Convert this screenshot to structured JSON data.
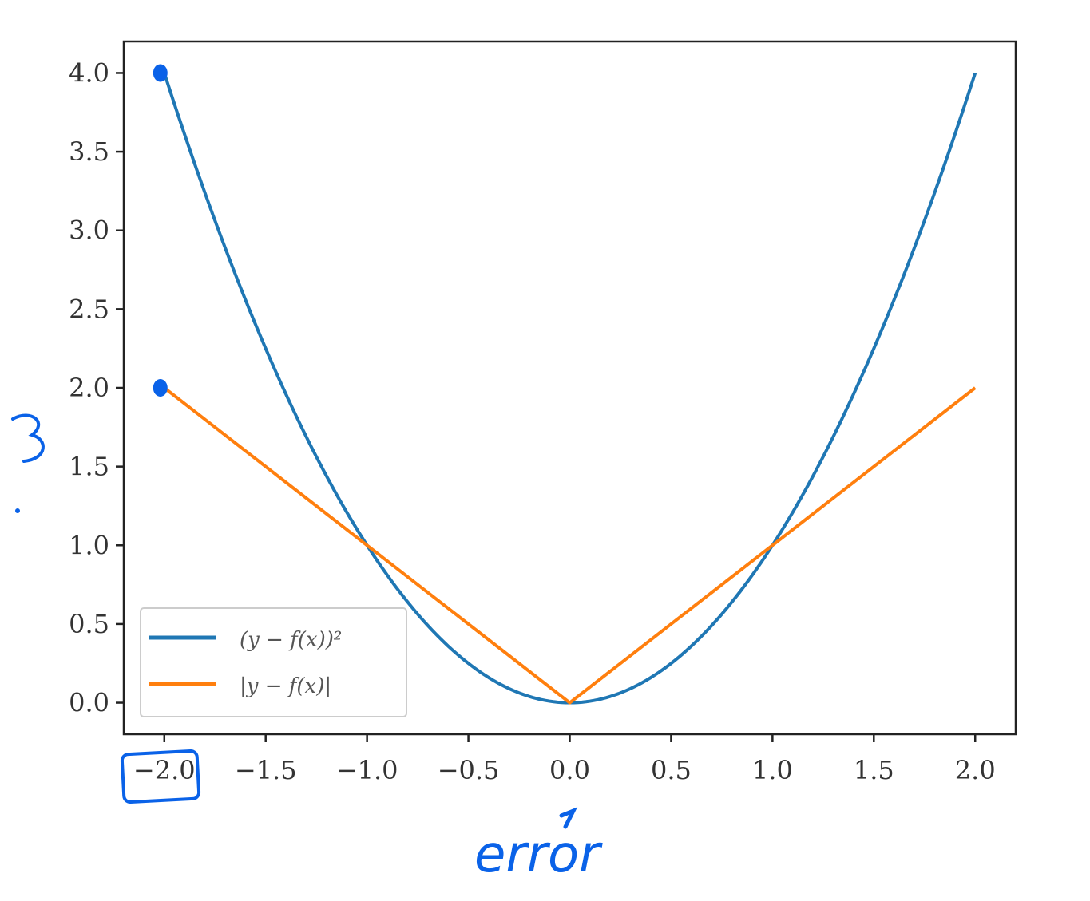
{
  "chart_data": {
    "type": "line",
    "title": "",
    "xlabel": "",
    "ylabel": "",
    "xlim": [
      -2.2,
      2.2
    ],
    "ylim": [
      -0.2,
      4.2
    ],
    "x_ticks": [
      -2.0,
      -1.5,
      -1.0,
      -0.5,
      0.0,
      0.5,
      1.0,
      1.5,
      2.0
    ],
    "y_ticks": [
      0.0,
      0.5,
      1.0,
      1.5,
      2.0,
      2.5,
      3.0,
      3.5,
      4.0
    ],
    "x_tick_labels": [
      "−2.0",
      "−1.5",
      "−1.0",
      "−0.5",
      "0.0",
      "0.5",
      "1.0",
      "1.5",
      "2.0"
    ],
    "y_tick_labels": [
      "0.0",
      "0.5",
      "1.0",
      "1.5",
      "2.0",
      "2.5",
      "3.0",
      "3.5",
      "4.0"
    ],
    "grid": false,
    "legend_position": "lower-left",
    "series": [
      {
        "name": "(y − f(x))²",
        "color": "#1f77b4",
        "x": [
          -2.0,
          -1.75,
          -1.5,
          -1.25,
          -1.0,
          -0.75,
          -0.5,
          -0.25,
          0.0,
          0.25,
          0.5,
          0.75,
          1.0,
          1.25,
          1.5,
          1.75,
          2.0
        ],
        "y": [
          4.0,
          3.0625,
          2.25,
          1.5625,
          1.0,
          0.5625,
          0.25,
          0.0625,
          0.0,
          0.0625,
          0.25,
          0.5625,
          1.0,
          1.5625,
          2.25,
          3.0625,
          4.0
        ]
      },
      {
        "name": "|y − f(x)|",
        "color": "#ff7f0e",
        "x": [
          -2.0,
          -1.0,
          0.0,
          1.0,
          2.0
        ],
        "y": [
          2.0,
          1.0,
          0.0,
          1.0,
          2.0
        ]
      }
    ]
  },
  "annotations": {
    "color": "#0a62e8",
    "text": "error",
    "marked_points": [
      {
        "x": -2.0,
        "y": 4.0
      },
      {
        "x": -2.0,
        "y": 2.0
      }
    ],
    "boxed_tick": "−2.0"
  }
}
